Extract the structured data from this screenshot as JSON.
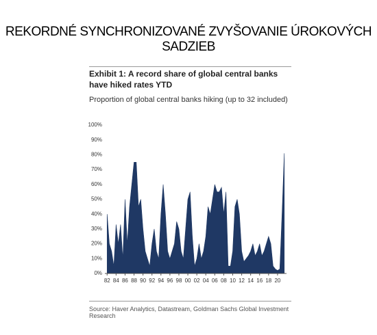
{
  "header": {
    "title": "REKORDNÉ SYNCHRONIZOVANÉ ZVYŠOVANIE ÚROKOVÝCH SADZIEB"
  },
  "chart_data": {
    "type": "area",
    "title": "Exhibit 1: A record share of global central banks have hiked rates YTD",
    "subtitle": "Proportion of global central banks hiking (up to 32 included)",
    "source": "Source: Haver Analytics, Datastream, Goldman Sachs Global Investment Research",
    "color": "#1f3864",
    "xlim": [
      1981.5,
      2022
    ],
    "ylim": [
      0,
      100
    ],
    "xticks": [
      {
        "value": 1982,
        "label": "82"
      },
      {
        "value": 1984,
        "label": "84"
      },
      {
        "value": 1986,
        "label": "86"
      },
      {
        "value": 1988,
        "label": "88"
      },
      {
        "value": 1990,
        "label": "90"
      },
      {
        "value": 1992,
        "label": "92"
      },
      {
        "value": 1994,
        "label": "94"
      },
      {
        "value": 1996,
        "label": "96"
      },
      {
        "value": 1998,
        "label": "98"
      },
      {
        "value": 2000,
        "label": "00"
      },
      {
        "value": 2002,
        "label": "02"
      },
      {
        "value": 2004,
        "label": "04"
      },
      {
        "value": 2006,
        "label": "06"
      },
      {
        "value": 2008,
        "label": "08"
      },
      {
        "value": 2010,
        "label": "10"
      },
      {
        "value": 2012,
        "label": "12"
      },
      {
        "value": 2014,
        "label": "14"
      },
      {
        "value": 2016,
        "label": "16"
      },
      {
        "value": 2018,
        "label": "18"
      },
      {
        "value": 2020,
        "label": "20"
      }
    ],
    "yticks": [
      {
        "value": 0,
        "label": "0%"
      },
      {
        "value": 10,
        "label": "10%"
      },
      {
        "value": 20,
        "label": "20%"
      },
      {
        "value": 30,
        "label": "30%"
      },
      {
        "value": 40,
        "label": "40%"
      },
      {
        "value": 50,
        "label": "50%"
      },
      {
        "value": 60,
        "label": "60%"
      },
      {
        "value": 70,
        "label": "70%"
      },
      {
        "value": 80,
        "label": "80%"
      },
      {
        "value": 90,
        "label": "90%"
      },
      {
        "value": 100,
        "label": "100%"
      }
    ],
    "x": [
      1982,
      1982.5,
      1983,
      1983.5,
      1984,
      1984.5,
      1985,
      1985.5,
      1986,
      1986.5,
      1987,
      1987.5,
      1988,
      1988.5,
      1989,
      1989.5,
      1990,
      1990.5,
      1991,
      1991.5,
      1992,
      1992.5,
      1993,
      1993.5,
      1994,
      1994.5,
      1995,
      1995.5,
      1996,
      1996.5,
      1997,
      1997.5,
      1998,
      1998.5,
      1999,
      1999.5,
      2000,
      2000.5,
      2001,
      2001.5,
      2002,
      2002.5,
      2003,
      2003.5,
      2004,
      2004.5,
      2005,
      2005.5,
      2006,
      2006.5,
      2007,
      2007.5,
      2008,
      2008.5,
      2009,
      2009.5,
      2010,
      2010.5,
      2011,
      2011.5,
      2012,
      2012.5,
      2013,
      2013.5,
      2014,
      2014.5,
      2015,
      2015.5,
      2016,
      2016.5,
      2017,
      2017.5,
      2018,
      2018.5,
      2019,
      2019.5,
      2020,
      2020.5,
      2021,
      2021.5
    ],
    "values": [
      40,
      20,
      15,
      5,
      33,
      20,
      33,
      10,
      50,
      20,
      45,
      60,
      75,
      75,
      45,
      50,
      30,
      15,
      10,
      5,
      20,
      30,
      15,
      10,
      40,
      60,
      40,
      15,
      10,
      15,
      20,
      35,
      30,
      15,
      10,
      30,
      50,
      55,
      25,
      5,
      10,
      20,
      10,
      15,
      25,
      45,
      40,
      50,
      60,
      55,
      55,
      58,
      40,
      55,
      5,
      5,
      15,
      45,
      50,
      40,
      15,
      8,
      10,
      12,
      15,
      20,
      12,
      15,
      20,
      12,
      15,
      20,
      25,
      20,
      5,
      3,
      2,
      3,
      40,
      81
    ]
  }
}
